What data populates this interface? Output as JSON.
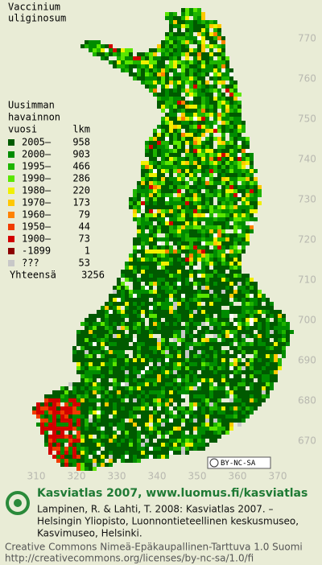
{
  "title": [
    "Vaccinium",
    "uliginosum"
  ],
  "legend": {
    "header": [
      "Uusimman",
      "havainnon"
    ],
    "col_year": "vuosi",
    "col_count": "lkm",
    "rows": [
      {
        "color": "#005a00",
        "label": "2005–",
        "count": 958
      },
      {
        "color": "#008c00",
        "label": "2000–",
        "count": 903
      },
      {
        "color": "#1eb400",
        "label": "1995–",
        "count": 466
      },
      {
        "color": "#5ae600",
        "label": "1990–",
        "count": 286
      },
      {
        "color": "#f0f000",
        "label": "1980–",
        "count": 220
      },
      {
        "color": "#ffc800",
        "label": "1970–",
        "count": 173
      },
      {
        "color": "#ff8200",
        "label": "1960–",
        "count": 79
      },
      {
        "color": "#f03c00",
        "label": "1950–",
        "count": 44
      },
      {
        "color": "#d20000",
        "label": "1900–",
        "count": 73
      },
      {
        "color": "#8c0000",
        "label": "-1899",
        "count": 1
      },
      {
        "color": "#c8c8c8",
        "label": "???",
        "count": 53
      }
    ],
    "total_label": "Yhteensä",
    "total": 3256
  },
  "y_labels": [
    770,
    760,
    750,
    740,
    730,
    720,
    710,
    700,
    690,
    680,
    670
  ],
  "x_labels": [
    310,
    320,
    330,
    340,
    350,
    360,
    370
  ],
  "license_badge": "BY-NC-SA",
  "footer": {
    "site": "Kasviatlas 2007, www.luomus.fi/kasviatlas",
    "citation": [
      "Lampinen, R. & Lahti, T. 2008: Kasviatlas 2007. –",
      "Helsingin Yliopisto, Luonnontieteellinen keskusmuseo,",
      "Kasvimuseo, Helsinki."
    ],
    "license": [
      "Creative Commons Nimeä-Epäkaupallinen-Tarttuva 1.0 Suomi",
      "http://creativecommons.org/licenses/by-nc-sa/1.0/fi"
    ]
  }
}
